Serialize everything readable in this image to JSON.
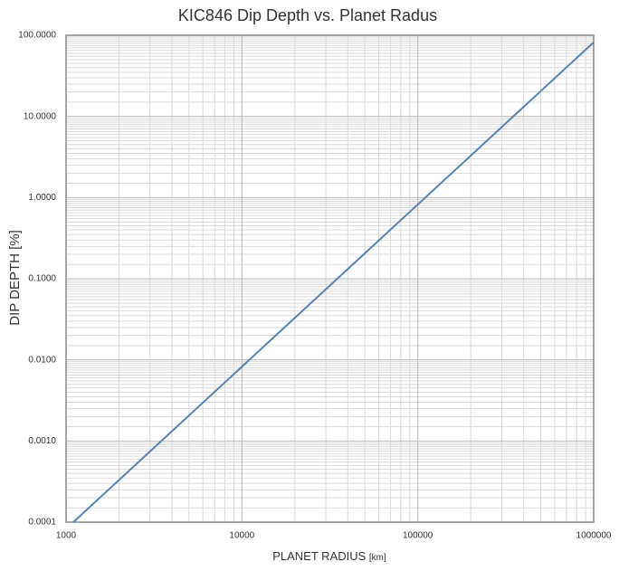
{
  "chart_data": {
    "type": "line",
    "title": "KIC846 Dip Depth vs. Planet Radus",
    "x_label": "PLANET RADIUS",
    "x_unit": "[km]",
    "y_label": "DIP DEPTH [%]",
    "x_log": true,
    "y_log": true,
    "grid": true,
    "minor_grid": true,
    "x": [
      1100,
      1000000
    ],
    "series": [
      {
        "color": "#5582b0",
        "values": [
          0.0001,
          82
        ]
      }
    ],
    "xlim": [
      1000,
      1000000
    ],
    "xticks": [
      1000,
      10000,
      100000,
      1000000
    ],
    "ylim": [
      0.0001,
      100
    ],
    "yticks": [
      {
        "value": 0.0001,
        "label": "0.0001"
      },
      {
        "value": 0.001,
        "label": "0.0010"
      },
      {
        "value": 0.01,
        "label": "0.0100"
      },
      {
        "value": 0.1,
        "label": "0.1000"
      },
      {
        "value": 1,
        "label": "1.0000"
      },
      {
        "value": 10,
        "label": "10.0000"
      },
      {
        "value": 100,
        "label": "100.0000"
      }
    ]
  }
}
